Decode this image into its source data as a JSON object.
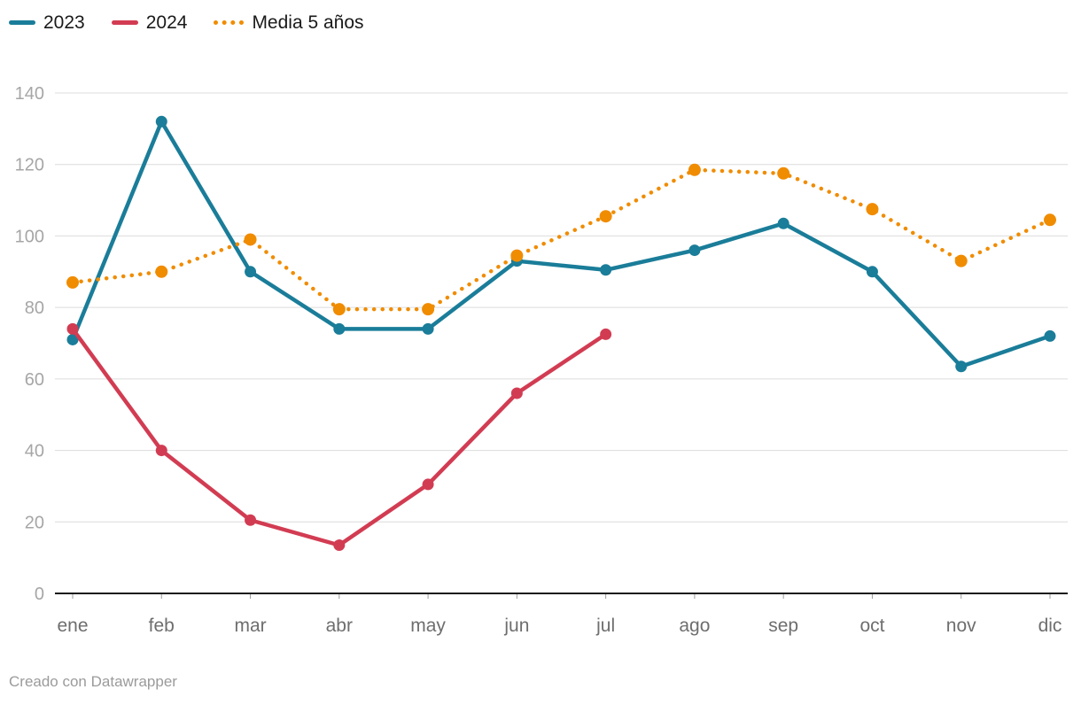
{
  "legend": {
    "items": [
      "2023",
      "2024",
      "Media 5 años"
    ]
  },
  "chart_data": {
    "type": "line",
    "categories": [
      "ene",
      "feb",
      "mar",
      "abr",
      "may",
      "jun",
      "jul",
      "ago",
      "sep",
      "oct",
      "nov",
      "dic"
    ],
    "series": [
      {
        "name": "2023",
        "color": "#1a7d99",
        "style": "solid",
        "values": [
          71,
          132,
          90,
          74,
          74,
          93,
          90.5,
          96,
          103.5,
          90,
          63.5,
          72
        ]
      },
      {
        "name": "2024",
        "color": "#d23c52",
        "style": "solid",
        "values": [
          74,
          40,
          20.5,
          13.5,
          30.5,
          56,
          72.5
        ]
      },
      {
        "name": "Media 5 años",
        "color": "#f08c00",
        "style": "dotted",
        "values": [
          87,
          90,
          99,
          79.5,
          79.5,
          94.5,
          105.5,
          118.5,
          117.5,
          107.5,
          93,
          104.5
        ]
      }
    ],
    "title": "",
    "xlabel": "",
    "ylabel": "",
    "ylim": [
      0,
      140
    ],
    "ytick_step": 20,
    "yticks": [
      0,
      20,
      40,
      60,
      80,
      100,
      120,
      140
    ],
    "grid": true,
    "legend_position": "top-left"
  },
  "colors": {
    "series_2023": "#1a7d99",
    "series_2024": "#d23c52",
    "series_media": "#f08c00",
    "gridline": "#dcdcdc",
    "axis_line": "#1a1a1a",
    "y_tick_label": "#a6a6a6",
    "x_tick_label": "#6e6e6e",
    "footer_text": "#9b9b9b"
  },
  "footer": {
    "credit": "Creado con Datawrapper"
  }
}
